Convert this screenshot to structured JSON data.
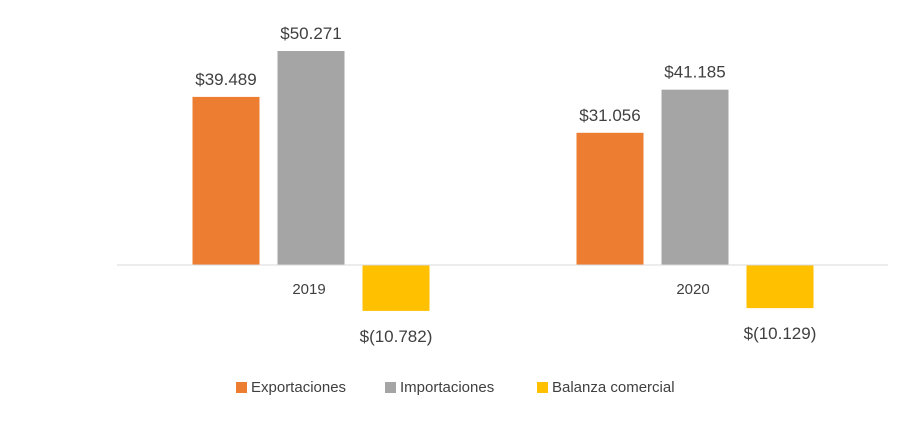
{
  "chart_data": {
    "type": "bar",
    "categories": [
      "2019",
      "2020"
    ],
    "series": [
      {
        "name": "Exportaciones",
        "color": "#ED7D31",
        "values": [
          39489,
          31056
        ],
        "labels": [
          "$39.489",
          "$31.056"
        ]
      },
      {
        "name": "Importaciones",
        "color": "#A5A5A5",
        "values": [
          50271,
          41185
        ],
        "labels": [
          "$50.271",
          "$41.185"
        ]
      },
      {
        "name": "Balanza comercial",
        "color": "#FFC000",
        "values": [
          -10782,
          -10129
        ],
        "labels": [
          "$(10.782)",
          "$(10.129)"
        ]
      }
    ],
    "title": "",
    "xlabel": "",
    "ylabel": "",
    "ylim": [
      -12000,
      58000
    ],
    "grid": false,
    "legend": "bottom"
  }
}
